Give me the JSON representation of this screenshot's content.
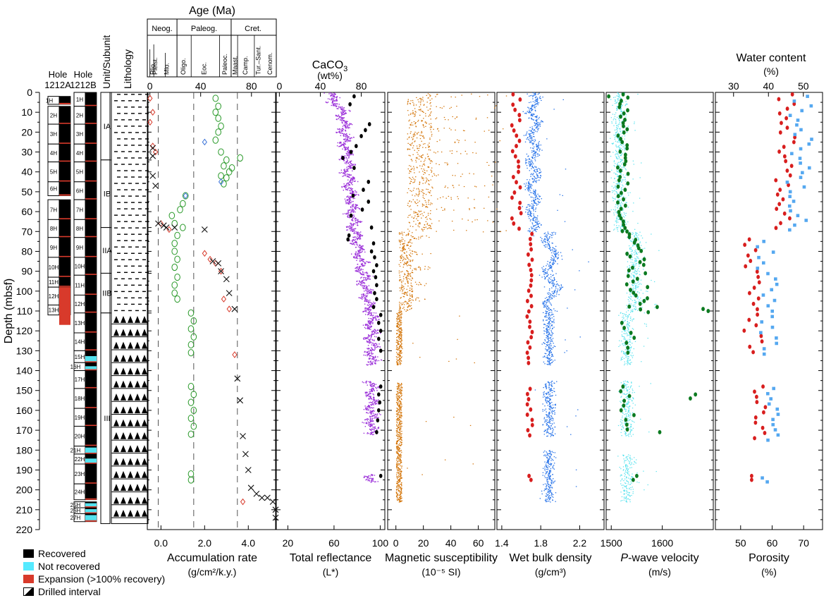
{
  "figure": {
    "y_axis_label": "Depth (mbsf)",
    "y_ticks": [
      0,
      10,
      20,
      30,
      40,
      50,
      60,
      70,
      80,
      90,
      100,
      110,
      120,
      130,
      140,
      150,
      160,
      170,
      180,
      190,
      200,
      210,
      220
    ],
    "ylim": [
      0,
      220
    ],
    "holes": [
      {
        "line1": "Hole",
        "line2": "1212A",
        "cores": [
          {
            "label": "1H",
            "top": 2,
            "bottom": 6
          },
          {
            "label": "2H",
            "top": 7,
            "bottom": 16
          },
          {
            "label": "3H",
            "top": 16,
            "bottom": 26
          },
          {
            "label": "4H",
            "top": 26,
            "bottom": 35
          },
          {
            "label": "5H",
            "top": 35,
            "bottom": 45
          },
          {
            "label": "6H",
            "top": 45,
            "bottom": 52
          },
          {
            "label": "7H",
            "top": 54,
            "bottom": 64
          },
          {
            "label": "8H",
            "top": 64,
            "bottom": 73
          },
          {
            "label": "9H",
            "top": 73,
            "bottom": 83
          },
          {
            "label": "10H",
            "top": 83,
            "bottom": 93
          },
          {
            "label": "11H",
            "top": 93,
            "bottom": 98
          },
          {
            "label": "12H",
            "top": 98,
            "bottom": 107
          },
          {
            "label": "13H",
            "top": 107,
            "bottom": 112
          }
        ]
      },
      {
        "line1": "Hole",
        "line2": "1212B",
        "cores": [
          {
            "label": "1H",
            "top": 0,
            "bottom": 7
          },
          {
            "label": "2H",
            "top": 7,
            "bottom": 16
          },
          {
            "label": "3H",
            "top": 16,
            "bottom": 26
          },
          {
            "label": "4H",
            "top": 26,
            "bottom": 35
          },
          {
            "label": "5H",
            "top": 35,
            "bottom": 45
          },
          {
            "label": "6H",
            "top": 45,
            "bottom": 54
          },
          {
            "label": "7H",
            "top": 54,
            "bottom": 64
          },
          {
            "label": "8H",
            "top": 64,
            "bottom": 73
          },
          {
            "label": "9H",
            "top": 73,
            "bottom": 83
          },
          {
            "label": "10H",
            "top": 83,
            "bottom": 92
          },
          {
            "label": "11H",
            "top": 92,
            "bottom": 102
          },
          {
            "label": "12H",
            "top": 102,
            "bottom": 111
          },
          {
            "label": "13H",
            "top": 111,
            "bottom": 121
          },
          {
            "label": "14H",
            "top": 121,
            "bottom": 130
          },
          {
            "label": "15H",
            "top": 130,
            "bottom": 136
          },
          {
            "label": "16H",
            "top": 136,
            "bottom": 140
          },
          {
            "label": "17H",
            "top": 140,
            "bottom": 149
          },
          {
            "label": "18H",
            "top": 149,
            "bottom": 159
          },
          {
            "label": "19H",
            "top": 159,
            "bottom": 168
          },
          {
            "label": "20H",
            "top": 168,
            "bottom": 178
          },
          {
            "label": "21H",
            "top": 178,
            "bottom": 182
          },
          {
            "label": "22H",
            "top": 182,
            "bottom": 187
          },
          {
            "label": "23H",
            "top": 187,
            "bottom": 197
          },
          {
            "label": "24H",
            "top": 197,
            "bottom": 205
          },
          {
            "label": "25H",
            "top": 206,
            "bottom": 209
          },
          {
            "label": "26H",
            "top": 209,
            "bottom": 212
          },
          {
            "label": "27H",
            "top": 212,
            "bottom": 216
          }
        ]
      }
    ],
    "unit_header": "Unit/Subunit",
    "units": [
      {
        "label": "IA",
        "top": 0,
        "bottom": 34
      },
      {
        "label": "IB",
        "top": 34,
        "bottom": 68
      },
      {
        "label": "IIA",
        "top": 68,
        "bottom": 91
      },
      {
        "label": "IIB",
        "top": 91,
        "bottom": 111
      },
      {
        "label": "III",
        "top": 111,
        "bottom": 217
      }
    ],
    "lithology_header": "Lithology",
    "age": {
      "title": "Age (Ma)",
      "groups": [
        {
          "label": "Neog.",
          "from": 0,
          "to": 23
        },
        {
          "label": "Paleog.",
          "from": 23,
          "to": 65
        },
        {
          "label": "Cret.",
          "from": 65,
          "to": 99
        }
      ],
      "stages": [
        {
          "label": "Pleist.",
          "pos": 6
        },
        {
          "label": "Plio.",
          "pos": 4
        },
        {
          "label": "Mio.",
          "pos": 15
        },
        {
          "label": "Oligo.",
          "pos": 28
        },
        {
          "label": "Eoc.",
          "pos": 44
        },
        {
          "label": "Paleoc.",
          "pos": 60
        },
        {
          "label": "Maast.",
          "pos": 68
        },
        {
          "label": "Camp.",
          "pos": 76
        },
        {
          "label": "Tur.–Sant.",
          "pos": 86
        },
        {
          "label": "Cenom.",
          "pos": 95
        }
      ],
      "ticks": [
        "0",
        "40",
        "80"
      ],
      "boundaries": [
        23,
        65
      ]
    },
    "caco3": {
      "title_part1": "CaCO",
      "title_sub": "3",
      "unit": "(wt%)",
      "ticks": [
        "0",
        "40",
        "80"
      ]
    },
    "water": {
      "title": "Water content",
      "unit": "(%)",
      "ticks": [
        "30",
        "40",
        "50"
      ]
    },
    "bottom_labels": [
      {
        "name": "Accumulation rate",
        "unit": "(g/cm²/k.y.)"
      },
      {
        "name": "Total reflectance",
        "unit": "(L*)"
      },
      {
        "name": "Magnetic susceptibility",
        "unit": "(10⁻⁵ SI)"
      },
      {
        "name": "Wet bulk density",
        "unit": "(g/cm³)"
      },
      {
        "name_italic": "P",
        "name_rest": "-wave velocity",
        "unit": "(m/s)"
      },
      {
        "name": "Porosity",
        "unit": "(%)"
      }
    ],
    "legend": [
      {
        "label": "Recovered",
        "color": "#000000"
      },
      {
        "label": "Not recovered",
        "color": "#55eaff"
      },
      {
        "label": "Expansion (>100% recovery)",
        "color": "#d83a2b"
      },
      {
        "label": "Drilled interval",
        "color": "hatched"
      }
    ],
    "colors": {
      "purple": "#9b30d9",
      "orange": "#d27000",
      "blue": "#1e6de8",
      "red": "#d81e1e",
      "green": "#0c7a20",
      "cyan": "#55e2ee",
      "lightblue": "#55a8f0",
      "diamond": "#d83a2b"
    }
  },
  "chart_data": [
    {
      "type": "scatter",
      "panel": "accumulation_rate",
      "xlabel": "Accumulation rate",
      "xunit": "(g/cm²/k.y.)",
      "xlim": [
        -0.5,
        4.2
      ],
      "xticks": [
        0.0,
        0.8,
        1.6,
        2.4,
        3.2,
        4.0
      ],
      "tick_labels": [
        "0.0",
        "2.0",
        "4.0"
      ],
      "ylim": [
        0,
        220
      ],
      "series": [
        {
          "marker": "circle",
          "color": "#2a9a2a",
          "points": [
            [
              2.0,
              3
            ],
            [
              2.1,
              7
            ],
            [
              2.0,
              10
            ],
            [
              2.1,
              13
            ],
            [
              2.2,
              17
            ],
            [
              2.1,
              20
            ],
            [
              2.0,
              24
            ],
            [
              2.2,
              30
            ],
            [
              2.4,
              34
            ],
            [
              2.3,
              37
            ],
            [
              2.5,
              40
            ],
            [
              2.4,
              43
            ],
            [
              2.3,
              46
            ],
            [
              2.2,
              42
            ],
            [
              2.9,
              33
            ],
            [
              2.6,
              38
            ],
            [
              0.9,
              52
            ],
            [
              0.8,
              56
            ],
            [
              0.7,
              59
            ],
            [
              0.4,
              62
            ],
            [
              0.5,
              66
            ],
            [
              0.8,
              68
            ],
            [
              0.6,
              72
            ],
            [
              0.5,
              76
            ],
            [
              0.5,
              80
            ],
            [
              0.6,
              84
            ],
            [
              0.5,
              88
            ],
            [
              0.6,
              93
            ],
            [
              0.5,
              97
            ],
            [
              0.5,
              101
            ],
            [
              0.6,
              104
            ],
            [
              1.1,
              111
            ],
            [
              1.2,
              115
            ],
            [
              1.1,
              119
            ],
            [
              1.2,
              123
            ],
            [
              1.1,
              127
            ],
            [
              1.1,
              131
            ],
            [
              1.1,
              148
            ],
            [
              1.2,
              152
            ],
            [
              1.1,
              156
            ],
            [
              1.2,
              160
            ],
            [
              1.1,
              164
            ],
            [
              1.2,
              168
            ],
            [
              1.1,
              172
            ],
            [
              1.1,
              192
            ],
            [
              1.1,
              195
            ]
          ]
        },
        {
          "marker": "diamond",
          "color": "#3c74d8",
          "points": [
            [
              1.6,
              25
            ],
            [
              2.2,
              45
            ],
            [
              0.9,
              52
            ]
          ]
        },
        {
          "marker": "diamond",
          "color": "#d83a2b",
          "points": [
            [
              -0.4,
              3
            ],
            [
              -0.3,
              10
            ],
            [
              -0.4,
              15
            ],
            [
              -0.3,
              27
            ],
            [
              -0.2,
              30
            ],
            [
              0.0,
              66
            ],
            [
              0.3,
              69
            ],
            [
              1.6,
              81
            ],
            [
              1.8,
              84
            ],
            [
              2.0,
              86
            ],
            [
              2.2,
              90
            ],
            [
              2.3,
              104
            ],
            [
              2.5,
              109
            ],
            [
              2.7,
              132
            ],
            [
              3.0,
              206
            ]
          ]
        },
        {
          "marker": "x",
          "color": "#111111",
          "points": [
            [
              -0.3,
              28
            ],
            [
              -0.3,
              32
            ],
            [
              -0.3,
              42
            ],
            [
              -0.2,
              47
            ],
            [
              -0.1,
              66
            ],
            [
              0.1,
              67
            ],
            [
              0.2,
              68
            ],
            [
              0.5,
              68
            ],
            [
              1.6,
              69
            ],
            [
              1.9,
              85
            ],
            [
              2.1,
              86
            ],
            [
              2.2,
              90
            ],
            [
              2.4,
              94
            ],
            [
              2.5,
              101
            ],
            [
              2.7,
              109
            ],
            [
              2.8,
              144
            ],
            [
              2.9,
              155
            ],
            [
              3.0,
              173
            ],
            [
              3.1,
              182
            ],
            [
              3.2,
              190
            ],
            [
              3.3,
              199
            ],
            [
              3.5,
              202
            ],
            [
              3.7,
              204
            ],
            [
              3.9,
              204
            ],
            [
              4.1,
              206
            ],
            [
              4.2,
              210
            ],
            [
              4.2,
              214
            ]
          ]
        }
      ],
      "dashed_lines": [
        -0.1,
        1.2,
        2.8
      ]
    },
    {
      "type": "scatter",
      "panel": "total_reflectance",
      "xlabel": "Total reflectance",
      "xunit": "(L*)",
      "xticks": [
        "20",
        "60",
        "100"
      ],
      "xlim": [
        10,
        104
      ],
      "ylim": [
        0,
        220
      ]
    },
    {
      "type": "scatter",
      "panel": "magnetic_susceptibility",
      "xlabel": "Magnetic susceptibility",
      "xunit": "(10⁻⁵ SI)",
      "xticks": [
        "0",
        "20",
        "40",
        "60"
      ],
      "xlim": [
        -6,
        72
      ],
      "ylim": [
        0,
        220
      ]
    },
    {
      "type": "scatter",
      "panel": "wet_bulk_density",
      "xlabel": "Wet bulk density",
      "xunit": "(g/cm³)",
      "xticks": [
        "1.4",
        "1.8",
        "2.2"
      ],
      "xlim": [
        1.35,
        2.45
      ],
      "ylim": [
        0,
        220
      ]
    },
    {
      "type": "scatter",
      "panel": "p_wave_velocity",
      "xlabel": "P-wave velocity",
      "xunit": "(m/s)",
      "xticks": [
        "1500",
        "1600"
      ],
      "xlim": [
        1490,
        1700
      ],
      "ylim": [
        0,
        220
      ]
    },
    {
      "type": "scatter",
      "panel": "porosity",
      "xlabel": "Porosity",
      "xunit": "(%)",
      "xticks": [
        "50",
        "60",
        "70"
      ],
      "xlim": [
        42,
        76
      ],
      "ylim": [
        0,
        220
      ]
    }
  ]
}
